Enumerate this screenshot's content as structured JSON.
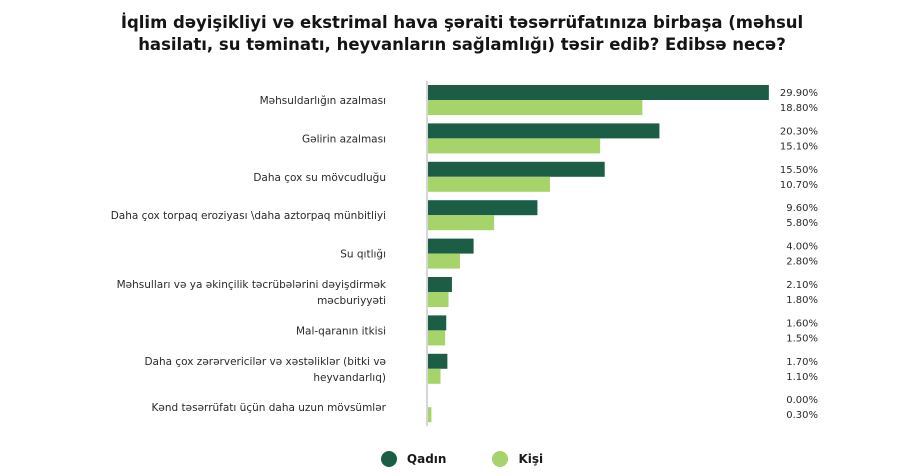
{
  "chart_data": {
    "type": "bar",
    "orientation": "horizontal",
    "title_lines": [
      "İqlim dəyişikliyi və ekstrimal hava şəraiti təsərrüfatınıza birbaşa (məhsul",
      "hasilatı, su təminatı, heyvanların sağlamlığı) təsir edib? Edibsə necə?"
    ],
    "categories": [
      [
        "Məhsuldarlığın azalması"
      ],
      [
        "Gəlirin azalması"
      ],
      [
        "Daha çox su mövcudluğu"
      ],
      [
        "Daha çox torpaq eroziyası \\daha aztorpaq münbitliyi"
      ],
      [
        "Su qıtlığı"
      ],
      [
        "Məhsulları və ya əkinçilik təcrübələrini dəyişdirmək",
        "məcburiyyəti"
      ],
      [
        "Mal-qaranın itkisi"
      ],
      [
        "Daha çox zərərvericilər və xəstəliklər (bitki və",
        "heyvandarlıq)"
      ],
      [
        "Kənd təsərrüfatı üçün daha uzun mövsümlər"
      ]
    ],
    "series": [
      {
        "name": "Qadın",
        "color": "#1b5e45",
        "values": [
          29.9,
          20.3,
          15.5,
          9.6,
          4.0,
          2.1,
          1.6,
          1.7,
          0.0
        ],
        "labels": [
          "29.90%",
          "20.30%",
          "15.50%",
          "9.60%",
          "4.00%",
          "2.10%",
          "1.60%",
          "1.70%",
          "0.00%"
        ]
      },
      {
        "name": "Kişi",
        "color": "#a6d36a",
        "values": [
          18.8,
          15.1,
          10.7,
          5.8,
          2.8,
          1.8,
          1.5,
          1.1,
          0.3
        ],
        "labels": [
          "18.80%",
          "15.10%",
          "10.70%",
          "5.80%",
          "2.80%",
          "1.80%",
          "1.50%",
          "1.10%",
          "0.30%"
        ]
      }
    ],
    "value_unit": "%",
    "xlim": [
      0,
      30
    ],
    "legend_position": "bottom",
    "grid": false
  }
}
